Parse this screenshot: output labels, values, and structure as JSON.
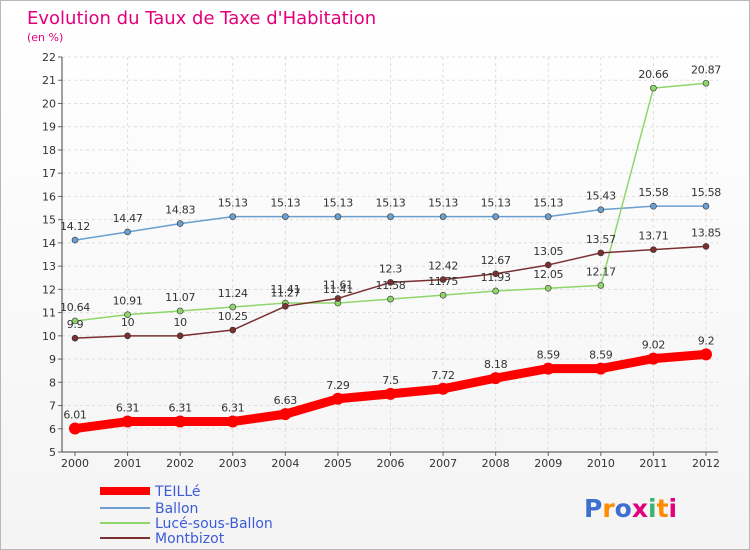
{
  "chart_data": {
    "type": "line",
    "title": "Evolution du Taux de Taxe d'Habitation",
    "subtitle": "(en %)",
    "xlabel": "",
    "ylabel": "",
    "x": [
      "2000",
      "2001",
      "2002",
      "2003",
      "2004",
      "2005",
      "2006",
      "2007",
      "2008",
      "2009",
      "2010",
      "2011",
      "2012"
    ],
    "ylim": [
      5,
      22
    ],
    "yticks": [
      5,
      6,
      7,
      8,
      9,
      10,
      11,
      12,
      13,
      14,
      15,
      16,
      17,
      18,
      19,
      20,
      21,
      22
    ],
    "grid": true,
    "legend_position": "bottom-left",
    "series": [
      {
        "name": "TEILLé",
        "color": "#ff0000",
        "values": [
          6.01,
          6.31,
          6.31,
          6.31,
          6.63,
          7.29,
          7.5,
          7.72,
          8.18,
          8.59,
          8.59,
          9.02,
          9.2
        ],
        "labels": [
          "6.01",
          "6.31",
          "6.31",
          "6.31",
          "6.63",
          "7.29",
          "7.5",
          "7.72",
          "8.18",
          "8.59",
          "8.59",
          "9.02",
          "9.2"
        ]
      },
      {
        "name": "Ballon",
        "color": "#6a9fd0",
        "values": [
          14.12,
          14.47,
          14.83,
          15.13,
          15.13,
          15.13,
          15.13,
          15.13,
          15.13,
          15.13,
          15.43,
          15.58,
          15.58
        ],
        "labels": [
          "14.12",
          "14.47",
          "14.83",
          "15.13",
          "15.13",
          "15.13",
          "15.13",
          "15.13",
          "15.13",
          "15.13",
          "15.43",
          "15.58",
          "15.58"
        ]
      },
      {
        "name": "Lucé-sous-Ballon",
        "color": "#8fd66a",
        "values": [
          10.64,
          10.91,
          11.07,
          11.24,
          11.41,
          11.41,
          11.58,
          11.75,
          11.93,
          12.05,
          12.17,
          20.66,
          20.87
        ],
        "labels": [
          "10.64",
          "10.91",
          "11.07",
          "11.24",
          "11.41",
          "11.41",
          "11.58",
          "11.75",
          "11.93",
          "12.05",
          "12.17",
          "20.66",
          "20.87"
        ]
      },
      {
        "name": "Montbizot",
        "color": "#7a3030",
        "values": [
          9.9,
          10,
          10,
          10.25,
          11.27,
          11.61,
          12.3,
          12.42,
          12.67,
          13.05,
          13.57,
          13.71,
          13.85
        ],
        "labels": [
          "9.9",
          "10",
          "10",
          "10.25",
          "11.27",
          "11.61",
          "12.3",
          "12.42",
          "12.67",
          "13.05",
          "13.57",
          "13.71",
          "13.85"
        ]
      }
    ]
  },
  "logo": {
    "text": "Proxiti"
  }
}
